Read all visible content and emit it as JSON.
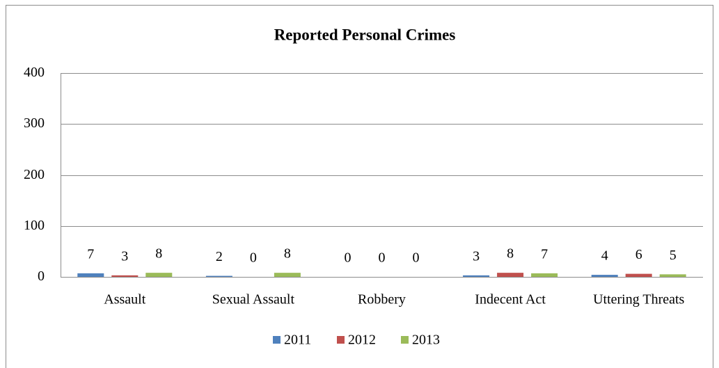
{
  "chart_data": {
    "type": "bar",
    "title": "Reported Personal Crimes",
    "categories": [
      "Assault",
      "Sexual Assault",
      "Robbery",
      "Indecent Act",
      "Uttering Threats"
    ],
    "series": [
      {
        "name": "2011",
        "color": "#4f81bd",
        "values": [
          7,
          2,
          0,
          3,
          4
        ]
      },
      {
        "name": "2012",
        "color": "#c0504d",
        "values": [
          3,
          0,
          0,
          8,
          6
        ]
      },
      {
        "name": "2013",
        "color": "#9bbb59",
        "values": [
          8,
          8,
          0,
          7,
          5
        ]
      }
    ],
    "ylim": [
      0,
      400
    ],
    "yticks": [
      0,
      100,
      200,
      300,
      400
    ],
    "grid": true,
    "legend": "bottom"
  }
}
